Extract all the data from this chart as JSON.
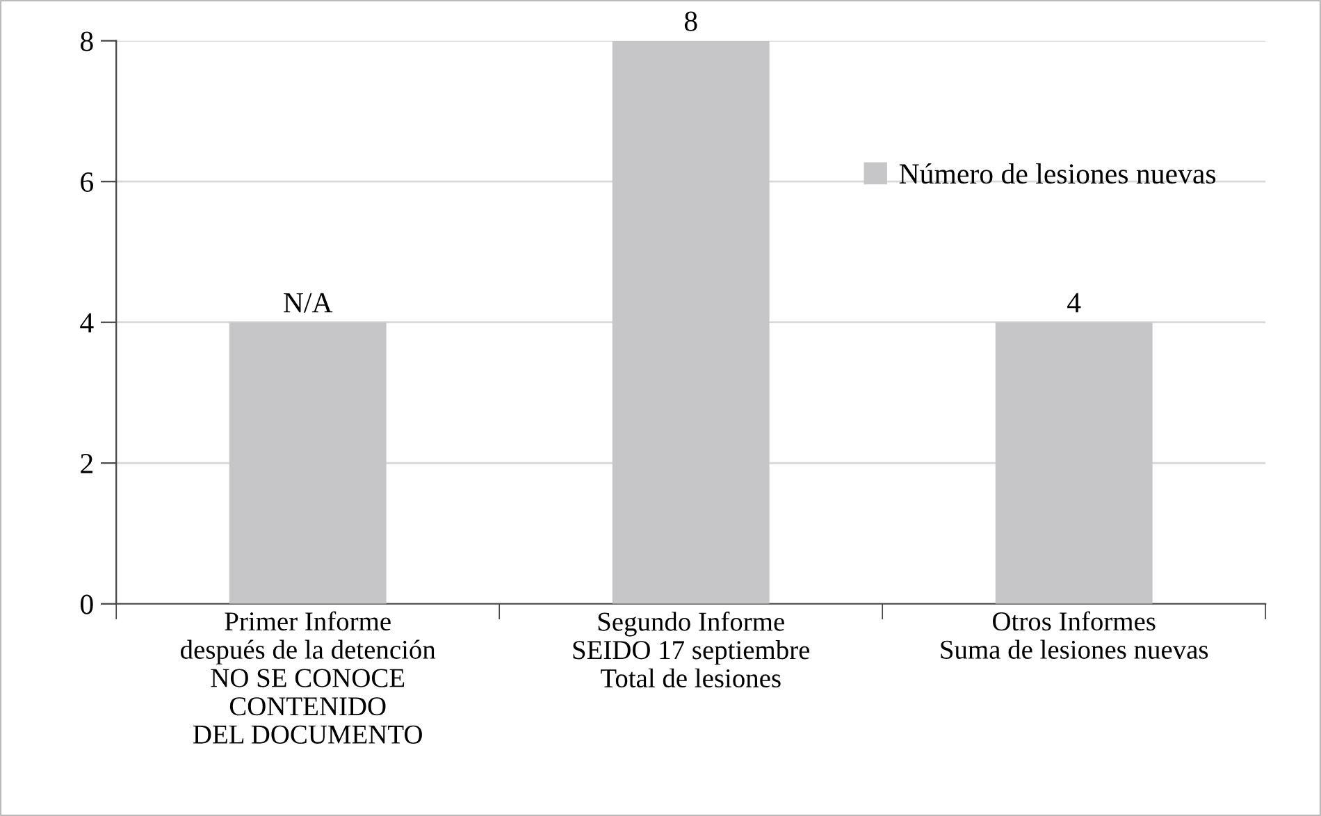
{
  "chart_data": {
    "type": "bar",
    "categories": [
      "Primer Informe\ndespués de la detención\nNO SE CONOCE\nCONTENIDO\nDEL DOCUMENTO",
      "Segundo Informe\nSEIDO 17 septiembre\nTotal de lesiones",
      "Otros Informes\nSuma de lesiones nuevas"
    ],
    "series": [
      {
        "name": "Número de lesiones nuevas",
        "color": "#c6c6c8",
        "values": [
          4,
          8,
          4
        ],
        "value_labels": [
          "N/A",
          "8",
          "4"
        ]
      }
    ],
    "ylim": [
      0,
      8
    ],
    "yticks": [
      0,
      2,
      4,
      6,
      8
    ],
    "grid": "y",
    "legend": "top right"
  }
}
